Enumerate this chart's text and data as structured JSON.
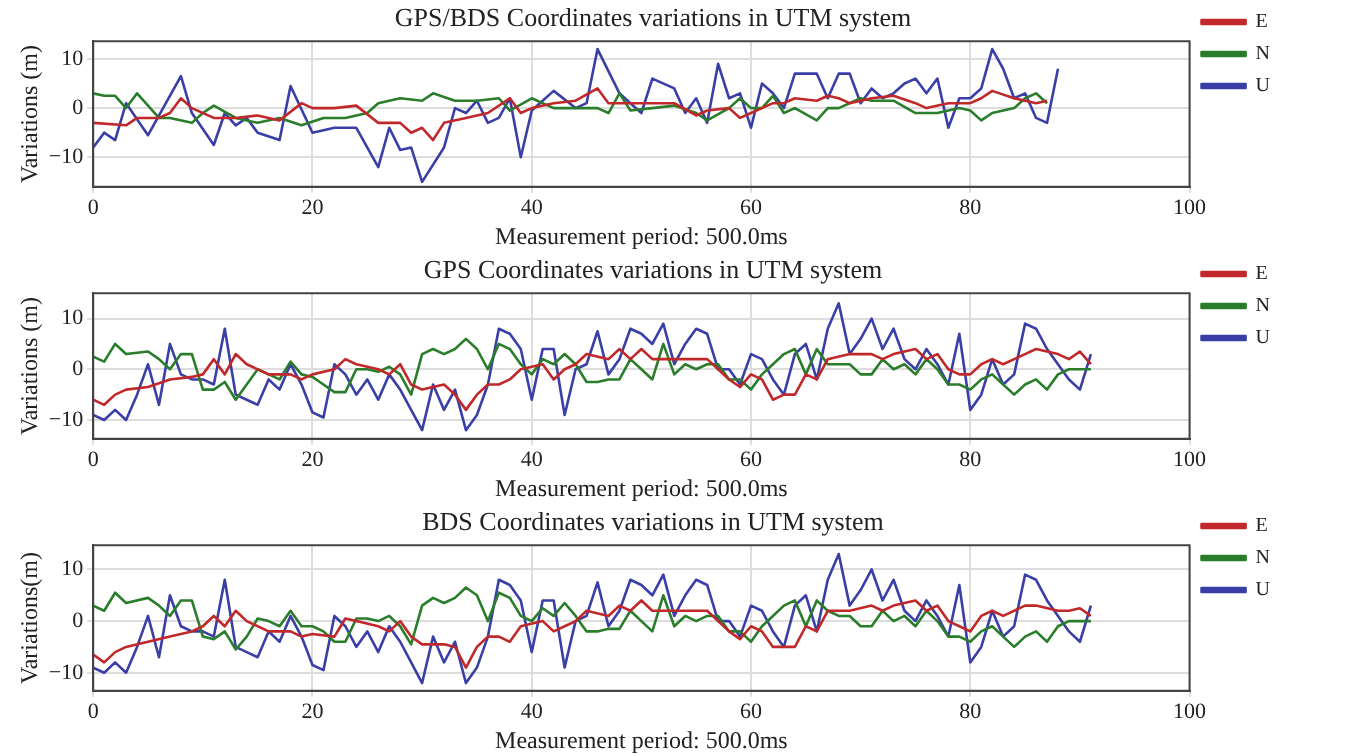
{
  "chart_data": [
    {
      "type": "line",
      "title": "GPS/BDS Coordinates variations in UTM system",
      "xlabel": "Measurement period: 500.0ms",
      "ylabel": "Variations (m)",
      "xlim": [
        0,
        100
      ],
      "xticks": [
        0,
        20,
        40,
        60,
        80,
        100
      ],
      "ylim": [
        -16,
        13.6
      ],
      "yticks": [
        -10,
        0,
        10
      ],
      "grid": true,
      "legend": "top right",
      "series": [
        {
          "name": "E",
          "color": "#c0282a",
          "x": [
            0,
            3,
            4,
            6,
            7,
            8,
            9,
            11,
            13,
            15,
            17,
            19,
            20,
            22,
            24,
            26,
            28,
            29,
            30,
            31,
            32,
            34,
            36,
            38,
            39,
            40,
            42,
            44,
            46,
            47,
            49,
            51,
            53,
            55,
            56,
            58,
            59,
            60,
            62,
            63,
            64,
            66,
            67,
            68,
            69,
            71,
            73,
            75,
            76,
            78,
            80,
            81,
            82,
            84,
            86,
            87
          ],
          "values": [
            -3,
            -3.5,
            -2,
            -2,
            -1,
            2,
            0,
            -2,
            -2,
            -1.5,
            -2.5,
            1,
            0,
            0,
            0.5,
            -3,
            -3,
            -5,
            -4,
            -6.5,
            -3,
            -2,
            -1,
            2,
            -1,
            0,
            1,
            1.5,
            4,
            1,
            1,
            1,
            1,
            -1.5,
            -0.5,
            0,
            -2,
            -1,
            1,
            1,
            2,
            1.5,
            2.5,
            2,
            1,
            2,
            2.5,
            1,
            0,
            1,
            1,
            2,
            3.5,
            2,
            1,
            1.5
          ]
        },
        {
          "name": "N",
          "color": "#2a7d2a",
          "x": [
            0,
            1,
            2,
            3,
            4,
            6,
            7,
            9,
            10,
            11,
            13,
            15,
            17,
            19,
            21,
            23,
            25,
            26,
            28,
            30,
            31,
            33,
            35,
            37,
            38,
            40,
            42,
            44,
            46,
            47,
            48,
            49,
            51,
            53,
            55,
            56,
            58,
            59,
            60,
            61,
            62,
            63,
            64,
            66,
            67,
            68,
            70,
            71,
            73,
            75,
            77,
            79,
            80,
            81,
            82,
            84,
            85,
            86,
            87
          ],
          "values": [
            3,
            2.5,
            2.5,
            0,
            3,
            -2,
            -2,
            -3,
            -1,
            0.5,
            -2,
            -3,
            -2,
            -3.5,
            -2,
            -2,
            -1,
            1,
            2,
            1.5,
            3,
            1.5,
            1.5,
            2,
            -0.5,
            2,
            0,
            0,
            0,
            -1,
            3,
            -0.5,
            0,
            0.5,
            -1,
            -2.5,
            0,
            2,
            0,
            0,
            2.5,
            -1,
            0,
            -2.5,
            0,
            0,
            2,
            1.5,
            1.5,
            -1,
            -1,
            0,
            -0.5,
            -2.5,
            -1,
            0,
            2,
            3,
            1
          ]
        },
        {
          "name": "U",
          "color": "#3a3fa8",
          "x": [
            0,
            1,
            2,
            3,
            5,
            8,
            9,
            11,
            12,
            13,
            14,
            15,
            17,
            18,
            20,
            22,
            24,
            26,
            27,
            28,
            29,
            30,
            32,
            33,
            34,
            35,
            36,
            37,
            38,
            39,
            40,
            42,
            44,
            45,
            46,
            48,
            49,
            50,
            51,
            53,
            54,
            55,
            56,
            57,
            58,
            59,
            60,
            61,
            62,
            63,
            64,
            66,
            67,
            68,
            69,
            70,
            71,
            72,
            73,
            74,
            75,
            76,
            77,
            78,
            79,
            80,
            81,
            82,
            83,
            84,
            85,
            86,
            87,
            88
          ],
          "values": [
            -8,
            -5,
            -6.5,
            1,
            -5.5,
            6.5,
            -1,
            -7.5,
            -1,
            -3.5,
            -2,
            -5,
            -6.5,
            4.5,
            -5,
            -4,
            -4,
            -12,
            -4,
            -8.5,
            -8,
            -15,
            -8,
            0,
            -1,
            1.5,
            -3,
            -2,
            2,
            -10,
            -0.5,
            3.5,
            0,
            1,
            12,
            3,
            1,
            -1,
            6,
            4,
            -1,
            2,
            -3,
            9,
            2,
            3,
            -4,
            5,
            3,
            0,
            7,
            7,
            2,
            7,
            7,
            1,
            4,
            2,
            3,
            5,
            6,
            3,
            6,
            -4,
            2,
            2,
            4,
            12,
            8,
            2,
            3,
            -2,
            -3,
            8
          ]
        }
      ]
    },
    {
      "type": "line",
      "title": "GPS Coordinates variations in UTM system",
      "xlabel": "Measurement period: 500.0ms",
      "ylabel": "Variations (m)",
      "xlim": [
        0,
        100
      ],
      "xticks": [
        0,
        20,
        40,
        60,
        80,
        100
      ],
      "ylim": [
        -13.7,
        15
      ],
      "yticks": [
        -10,
        0,
        10
      ],
      "grid": true,
      "legend": "top right",
      "series": [
        {
          "name": "E",
          "color": "#c0282a",
          "x": [
            0,
            1,
            2,
            3,
            5,
            7,
            9,
            10,
            11,
            12,
            13,
            14,
            16,
            18,
            19,
            20,
            22,
            23,
            24,
            26,
            27,
            28,
            29,
            30,
            32,
            33,
            34,
            35,
            36,
            37,
            38,
            39,
            41,
            42,
            43,
            44,
            45,
            47,
            48,
            49,
            50,
            51,
            52,
            53,
            54,
            55,
            56,
            57,
            58,
            59,
            60,
            61,
            62,
            63,
            64,
            65,
            66,
            67,
            69,
            71,
            72,
            73,
            75,
            76,
            77,
            78,
            79,
            80,
            81,
            82,
            83,
            85,
            86,
            88,
            89,
            90,
            91
          ],
          "values": [
            -6,
            -7,
            -5,
            -4,
            -3.5,
            -2,
            -1.5,
            -1,
            2,
            -1,
            3,
            1,
            -1,
            -1,
            -2,
            -1,
            0,
            2,
            1,
            0,
            -1,
            1,
            -3,
            -4,
            -3,
            -5,
            -8,
            -5,
            -3,
            -3,
            -2,
            0,
            1,
            -2,
            0,
            1,
            3,
            2,
            4,
            2,
            4,
            2,
            2,
            2,
            2,
            2,
            2,
            0,
            -2,
            -3.5,
            -1,
            -2,
            -6,
            -5,
            -5,
            -1,
            -2,
            2,
            3,
            3,
            2,
            3,
            4,
            2,
            3,
            0,
            -1,
            -1,
            1,
            2,
            1,
            3,
            4,
            3,
            2,
            3.5,
            1
          ]
        },
        {
          "name": "N",
          "color": "#2a7d2a",
          "x": [
            0,
            1,
            2,
            3,
            5,
            6,
            7,
            8,
            9,
            10,
            11,
            12,
            13,
            14,
            15,
            16,
            17,
            18,
            19,
            20,
            21,
            22,
            23,
            24,
            25,
            26,
            27,
            28,
            29,
            30,
            31,
            32,
            33,
            34,
            35,
            36,
            37,
            38,
            39,
            40,
            41,
            42,
            43,
            44,
            45,
            46,
            47,
            48,
            49,
            50,
            51,
            52,
            53,
            54,
            55,
            56,
            57,
            58,
            59,
            60,
            61,
            62,
            63,
            64,
            65,
            66,
            67,
            68,
            69,
            70,
            71,
            72,
            73,
            74,
            75,
            76,
            77,
            78,
            79,
            80,
            81,
            82,
            83,
            84,
            85,
            86,
            87,
            88,
            89,
            90,
            91
          ],
          "values": [
            2.5,
            1.5,
            5,
            3,
            3.5,
            2,
            0,
            3,
            3,
            -4,
            -4,
            -2.5,
            -6,
            -3,
            0,
            -1,
            -2,
            1.5,
            -1,
            -1.5,
            -3,
            -4.5,
            -4.5,
            0,
            0,
            -0.5,
            0.5,
            -1,
            -5,
            3,
            4,
            3,
            4,
            6,
            4,
            0,
            5,
            4,
            1,
            -1,
            2,
            1,
            3,
            1,
            -2.5,
            -2.5,
            -2,
            -2,
            2,
            0,
            -2,
            5,
            -1,
            1,
            0,
            1,
            1,
            -2,
            -2,
            -4,
            -1,
            1,
            3,
            4,
            -1,
            4,
            1,
            1,
            1,
            -1,
            -1,
            2,
            0,
            1,
            -1,
            2,
            0,
            -3,
            -3,
            -4,
            -2,
            -1,
            -3,
            -5,
            -3,
            -2,
            -4,
            -1,
            0,
            0,
            0
          ]
        },
        {
          "name": "U",
          "color": "#3a3fa8",
          "x": [
            0,
            1,
            2,
            3,
            4,
            5,
            6,
            7,
            8,
            9,
            10,
            11,
            12,
            13,
            14,
            15,
            16,
            17,
            18,
            19,
            20,
            21,
            22,
            23,
            24,
            25,
            26,
            27,
            28,
            29,
            30,
            31,
            32,
            33,
            34,
            35,
            36,
            37,
            38,
            39,
            40,
            41,
            42,
            43,
            44,
            45,
            46,
            47,
            48,
            49,
            50,
            51,
            52,
            53,
            54,
            55,
            56,
            57,
            58,
            59,
            60,
            61,
            62,
            63,
            64,
            65,
            66,
            67,
            68,
            69,
            70,
            71,
            72,
            73,
            74,
            75,
            76,
            77,
            78,
            79,
            80,
            81,
            82,
            83,
            84,
            85,
            86,
            87,
            88,
            89,
            90,
            91
          ],
          "values": [
            -9,
            -10,
            -8,
            -10,
            -5,
            1,
            -7,
            5,
            -1,
            -2,
            -2,
            -3,
            8,
            -5,
            -6,
            -7,
            -2,
            -4,
            1,
            -3,
            -8.5,
            -9.5,
            1,
            -1,
            -5,
            -2,
            -6,
            -1,
            -4,
            -8,
            -12,
            -3,
            -8,
            -4,
            -12,
            -9,
            -3,
            8,
            7,
            4,
            -6,
            4,
            4,
            -9,
            0,
            1,
            7.5,
            -1,
            2,
            8,
            7,
            5,
            9,
            1,
            5,
            8,
            7,
            0,
            0,
            -3,
            3,
            2,
            -2,
            -5,
            3,
            5,
            -2,
            8,
            13,
            3,
            6,
            10,
            4,
            8,
            2,
            0,
            4,
            1,
            -3,
            7,
            -8,
            -5,
            2,
            -3,
            -1,
            9,
            8,
            4,
            1,
            -2,
            -4,
            3
          ]
        }
      ]
    },
    {
      "type": "line",
      "title": "BDS Coordinates variations in UTM system",
      "xlabel": "Measurement period: 500.0ms",
      "ylabel": "Variations(m)",
      "xlim": [
        0,
        100
      ],
      "xticks": [
        0,
        20,
        40,
        60,
        80,
        100
      ],
      "ylim": [
        -13.5,
        14.7
      ],
      "yticks": [
        -10,
        0,
        10
      ],
      "grid": true,
      "legend": "top right",
      "series": [
        {
          "name": "E",
          "color": "#c0282a",
          "x": [
            0,
            1,
            2,
            3,
            5,
            7,
            9,
            10,
            11,
            12,
            13,
            14,
            16,
            18,
            19,
            20,
            22,
            23,
            24,
            26,
            27,
            28,
            29,
            30,
            32,
            33,
            34,
            35,
            36,
            37,
            38,
            39,
            41,
            42,
            43,
            44,
            45,
            47,
            48,
            49,
            50,
            51,
            52,
            53,
            54,
            55,
            56,
            57,
            58,
            59,
            60,
            61,
            62,
            63,
            64,
            65,
            66,
            67,
            69,
            71,
            72,
            73,
            75,
            76,
            77,
            78,
            79,
            80,
            81,
            82,
            83,
            85,
            86,
            88,
            89,
            90,
            91
          ],
          "values": [
            -6.5,
            -8,
            -6,
            -5,
            -4,
            -3,
            -2,
            -1,
            1,
            -1,
            2,
            0,
            -2,
            -2,
            -3,
            -2.5,
            -3,
            0.5,
            0,
            -1,
            -2,
            0,
            -3,
            -4.5,
            -4.5,
            -5,
            -9,
            -5,
            -3,
            -3,
            -4,
            -1,
            0,
            -2,
            -1,
            0,
            2,
            1,
            3,
            2,
            4,
            2,
            2,
            2,
            2,
            2,
            2,
            0,
            -2,
            -3.5,
            -1,
            -2,
            -5,
            -5,
            -5,
            -1,
            -2,
            2,
            2,
            3,
            2,
            3,
            4,
            2,
            3,
            0,
            -1,
            -2,
            1,
            2,
            1,
            3,
            3,
            2,
            2,
            2.5,
            1
          ]
        },
        {
          "name": "N",
          "color": "#2a7d2a",
          "x": [
            0,
            1,
            2,
            3,
            5,
            6,
            7,
            8,
            9,
            10,
            11,
            12,
            13,
            14,
            15,
            16,
            17,
            18,
            19,
            20,
            21,
            22,
            23,
            24,
            25,
            26,
            27,
            28,
            29,
            30,
            31,
            32,
            33,
            34,
            35,
            36,
            37,
            38,
            39,
            40,
            41,
            42,
            43,
            44,
            45,
            46,
            47,
            48,
            49,
            50,
            51,
            52,
            53,
            54,
            55,
            56,
            57,
            58,
            59,
            60,
            61,
            62,
            63,
            64,
            65,
            66,
            67,
            68,
            69,
            70,
            71,
            72,
            73,
            74,
            75,
            76,
            77,
            78,
            79,
            80,
            81,
            82,
            83,
            84,
            85,
            86,
            87,
            88,
            89,
            90,
            91
          ],
          "values": [
            3,
            2,
            5.5,
            3.5,
            4.5,
            3,
            1,
            4,
            4,
            -3,
            -3.5,
            -2,
            -5.5,
            -3,
            0.5,
            0,
            -1,
            2,
            -1,
            -1,
            -2,
            -4,
            -4,
            0.5,
            0.5,
            0,
            1,
            -1,
            -4.5,
            3,
            4.5,
            3.5,
            4.5,
            6.5,
            5,
            0,
            5.5,
            4.5,
            1,
            0,
            2.5,
            1,
            3.5,
            1,
            -2,
            -2,
            -1.5,
            -1.5,
            2,
            0,
            -2,
            5,
            -1,
            1,
            0,
            1,
            1,
            -2,
            -2,
            -4,
            -1,
            1,
            3,
            4,
            -1,
            4,
            2,
            1,
            1,
            -1,
            -1,
            2,
            0,
            1,
            -1,
            2,
            0,
            -3,
            -3,
            -4,
            -2,
            -1,
            -3,
            -5,
            -3,
            -2,
            -4,
            -1,
            0,
            0,
            0
          ]
        },
        {
          "name": "U",
          "color": "#3a3fa8",
          "x": [
            0,
            1,
            2,
            3,
            4,
            5,
            6,
            7,
            8,
            9,
            10,
            11,
            12,
            13,
            14,
            15,
            16,
            17,
            18,
            19,
            20,
            21,
            22,
            23,
            24,
            25,
            26,
            27,
            28,
            29,
            30,
            31,
            32,
            33,
            34,
            35,
            36,
            37,
            38,
            39,
            40,
            41,
            42,
            43,
            44,
            45,
            46,
            47,
            48,
            49,
            50,
            51,
            52,
            53,
            54,
            55,
            56,
            57,
            58,
            59,
            60,
            61,
            62,
            63,
            64,
            65,
            66,
            67,
            68,
            69,
            70,
            71,
            72,
            73,
            74,
            75,
            76,
            77,
            78,
            79,
            80,
            81,
            82,
            83,
            84,
            85,
            86,
            87,
            88,
            89,
            90,
            91
          ],
          "values": [
            -9,
            -10,
            -8,
            -10,
            -5,
            1,
            -7,
            5,
            -1,
            -2,
            -2,
            -3,
            8,
            -5,
            -6,
            -7,
            -2,
            -4,
            1,
            -3,
            -8.5,
            -9.5,
            1,
            -1,
            -5,
            -2,
            -6,
            -1,
            -4,
            -8,
            -12,
            -3,
            -8,
            -4,
            -12,
            -9,
            -3,
            8,
            7,
            4,
            -6,
            4,
            4,
            -9,
            0,
            1,
            7.5,
            -1,
            2,
            8,
            7,
            5,
            9,
            1,
            5,
            8,
            7,
            0,
            0,
            -3,
            3,
            2,
            -2,
            -5,
            3,
            5,
            -2,
            8,
            13,
            3,
            6,
            10,
            4,
            8,
            2,
            0,
            4,
            1,
            -3,
            7,
            -8,
            -5,
            2,
            -3,
            -1,
            9,
            8,
            4,
            1,
            -2,
            -4,
            3
          ]
        }
      ]
    }
  ]
}
